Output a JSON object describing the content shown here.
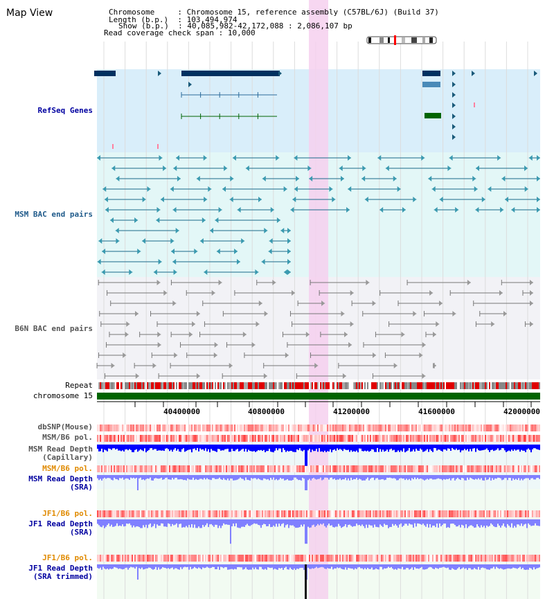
{
  "page": {
    "title": "Map View"
  },
  "header": {
    "chromosome_label": "Chromosome",
    "chromosome_value": "Chromosome 15, reference assembly (C57BL/6J) (Build 37)",
    "length_label": "Length (b.p.)",
    "length_value": "103,494,974",
    "show_label": "Show (b.p.)",
    "show_value": "40,085,982-42,172,088 : 2,086,107 bp",
    "coverage_label": "Read coverage check span",
    "coverage_value": "10,000"
  },
  "tracks": {
    "refseq": "RefSeq Genes",
    "msm_bac": "MSM BAC end pairs",
    "b6n_bac": "B6N BAC end pairs",
    "repeat": "Repeat",
    "chromosome": "chromosome 15",
    "dbsnp": "dbSNP(Mouse)",
    "msm_b6_pol_1": "MSM/B6 pol.",
    "msm_depth_cap_1": "MSM Read Depth",
    "msm_depth_cap_2": "(Capillary)",
    "msm_b6_pol_2": "MSM/B6 pol.",
    "msm_depth_sra_1": "MSM Read Depth",
    "msm_depth_sra_2": "(SRA)",
    "jf1_b6_pol_1": "JF1/B6 pol.",
    "jf1_depth_sra_1": "JF1 Read Depth",
    "jf1_depth_sra_2": "(SRA)",
    "jf1_b6_pol_2": "JF1/B6 pol.",
    "jf1_depth_trim_1": "JF1 Read Depth",
    "jf1_depth_trim_2": "(SRA trimmed)"
  },
  "axis": {
    "ticks": [
      "40400000",
      "40800000",
      "41200000",
      "41600000",
      "42000000"
    ]
  },
  "colors": {
    "refseq_bg": "#d9eefa",
    "msm_bg": "#e3f7f7",
    "b6n_bg": "#f2f2f6",
    "highlight": "#f6d0ee",
    "chromosome_bar": "#006400",
    "depth_blue": "#0000ff",
    "depth_lightblue": "#8080ff"
  }
}
